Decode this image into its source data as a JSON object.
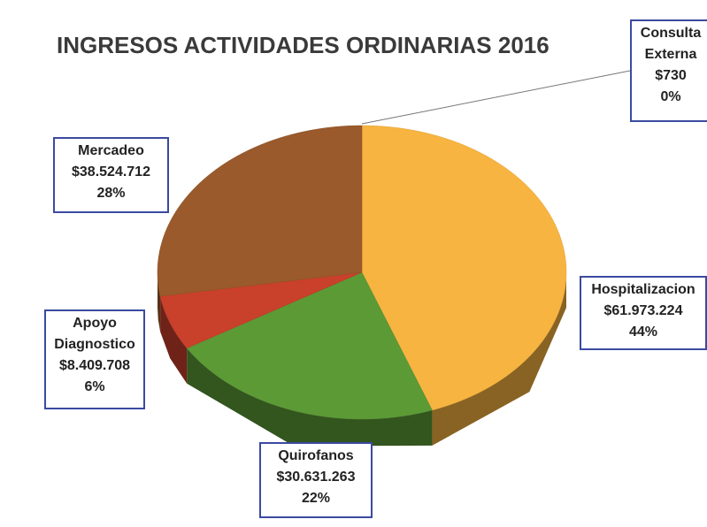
{
  "chart_data": {
    "type": "pie",
    "title": "INGRESOS ACTIVIDADES ORDINARIAS 2016",
    "categories": [
      "Consulta Externa",
      "Hospitalizacion",
      "Quirofanos",
      "Apoyo Diagnostico",
      "Mercadeo"
    ],
    "values": [
      730,
      61973224,
      30631263,
      8409708,
      38524712
    ],
    "value_labels": [
      "$730",
      "$61.973.224",
      "$30.631.263",
      "$8.409.708",
      "$38.524.712"
    ],
    "percent_labels": [
      "0%",
      "44%",
      "22%",
      "6%",
      "28%"
    ],
    "colors": [
      "#f9c35a",
      "#f7b440",
      "#5c9a36",
      "#c9402b",
      "#9a5a2c"
    ]
  }
}
